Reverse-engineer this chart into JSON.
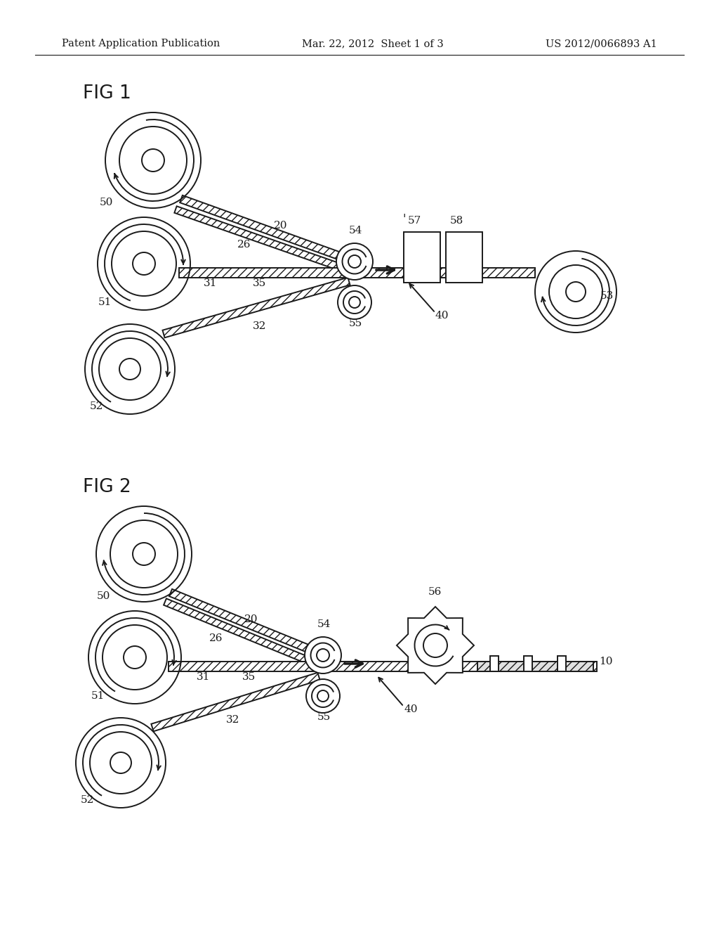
{
  "background_color": "#ffffff",
  "header_left": "Patent Application Publication",
  "header_center": "Mar. 22, 2012  Sheet 1 of 3",
  "header_right": "US 2012/0066893 A1",
  "fig1_label": "FIG 1",
  "fig2_label": "FIG 2",
  "line_color": "#1a1a1a"
}
